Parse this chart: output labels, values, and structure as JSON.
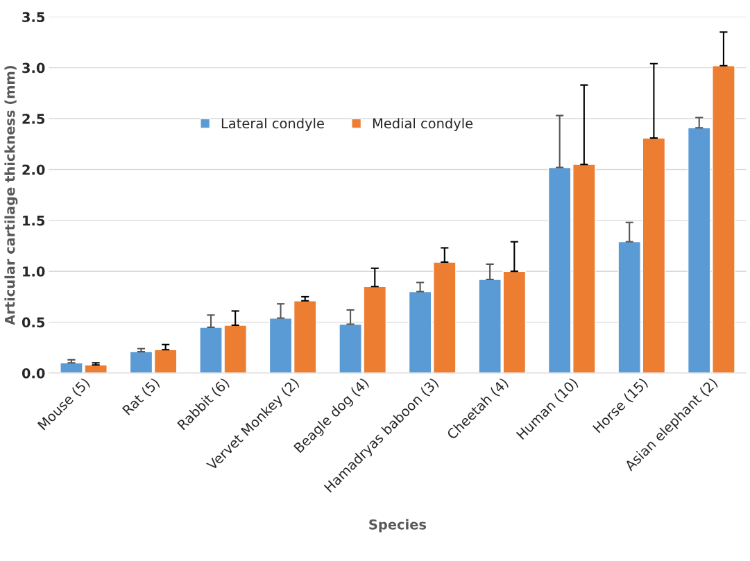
{
  "chart_data": {
    "type": "bar",
    "xlabel": "Species",
    "ylabel": "Articular cartilage thickness (mm)",
    "categories": [
      "Mouse (5)",
      "Rat (5)",
      "Rabbit (6)",
      "Vervet Monkey (2)",
      "Beagle dog (4)",
      "Hamadryas baboon (3)",
      "Cheetah (4)",
      "Human (10)",
      "Horse (15)",
      "Asian elephant (2)"
    ],
    "series": [
      {
        "name": "Lateral condyle",
        "color": "#5b9bd5",
        "values": [
          0.1,
          0.21,
          0.45,
          0.54,
          0.48,
          0.8,
          0.92,
          2.02,
          1.29,
          2.41
        ],
        "errors": [
          [
            0.1,
            0.13
          ],
          [
            0.21,
            0.24
          ],
          [
            0.45,
            0.57
          ],
          [
            0.54,
            0.68
          ],
          [
            0.48,
            0.62
          ],
          [
            0.8,
            0.89
          ],
          [
            0.92,
            1.07
          ],
          [
            2.02,
            2.53
          ],
          [
            1.29,
            1.48
          ],
          [
            2.41,
            2.51
          ]
        ]
      },
      {
        "name": "Medial condyle",
        "color": "#ed7d31",
        "values": [
          0.08,
          0.23,
          0.47,
          0.71,
          0.85,
          1.09,
          1.0,
          2.05,
          2.31,
          3.02
        ],
        "errors": [
          [
            0.08,
            0.1
          ],
          [
            0.23,
            0.28
          ],
          [
            0.47,
            0.61
          ],
          [
            0.71,
            0.75
          ],
          [
            0.85,
            1.03
          ],
          [
            1.09,
            1.23
          ],
          [
            1.0,
            1.29
          ],
          [
            2.05,
            2.83
          ],
          [
            2.31,
            3.04
          ],
          [
            3.02,
            3.35
          ]
        ]
      }
    ],
    "ylim": [
      0,
      3.5
    ],
    "yticks": [
      {
        "value": 0,
        "label": "0.0"
      },
      {
        "value": 0.5,
        "label": "0.5"
      },
      {
        "value": 1,
        "label": "1.0"
      },
      {
        "value": 1.5,
        "label": "1.5"
      },
      {
        "value": 2,
        "label": "2.0"
      },
      {
        "value": 2.5,
        "label": "2.5"
      },
      {
        "value": 3,
        "label": "3.0"
      },
      {
        "value": 3.5,
        "label": "3.5"
      }
    ],
    "grid": "y",
    "legend": "top left"
  }
}
